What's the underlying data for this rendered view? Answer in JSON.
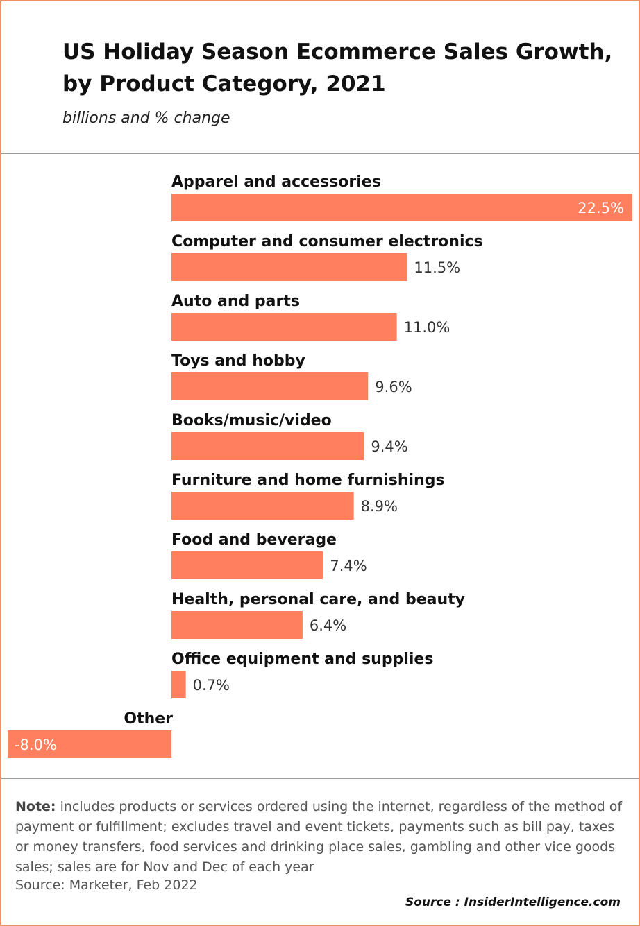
{
  "header": {
    "title": "US Holiday Season Ecommerce Sales Growth, by Product Category, 2021",
    "subtitle": "billions and % change"
  },
  "chart_data": {
    "type": "bar",
    "orientation": "horizontal",
    "categories": [
      "Apparel and accessories",
      "Computer and consumer electronics",
      "Auto and parts",
      "Toys and hobby",
      "Books/music/video",
      "Furniture and home furnishings",
      "Food and beverage",
      "Health, personal care, and beauty",
      "Office equipment and supplies",
      "Other"
    ],
    "values": [
      22.5,
      11.5,
      11.0,
      9.6,
      9.4,
      8.9,
      7.4,
      6.4,
      0.7,
      -8.0
    ],
    "value_labels": [
      "22.5%",
      "11.5%",
      "11.0%",
      "9.6%",
      "9.4%",
      "8.9%",
      "7.4%",
      "6.4%",
      "0.7%",
      "-8.0%"
    ],
    "unit": "%",
    "xlim": [
      -8.0,
      22.5
    ],
    "bar_color": "#ff7f5e",
    "grid": false,
    "legend": "none"
  },
  "footer": {
    "note_label": "Note:",
    "note_text": "includes products or services ordered using the internet, regardless of the method of payment or fulfillment; excludes travel and event tickets, payments such as bill pay, taxes or money transfers, food services and drinking place sales, gambling and other vice goods sales; sales are for Nov and Dec of each year",
    "source": "Source: Marketer, Feb 2022",
    "credit": "Source : InsiderIntelligence.com"
  },
  "colors": {
    "accent": "#ff7f5e",
    "border": "#f08e6a",
    "divider": "#9a9a9a"
  }
}
